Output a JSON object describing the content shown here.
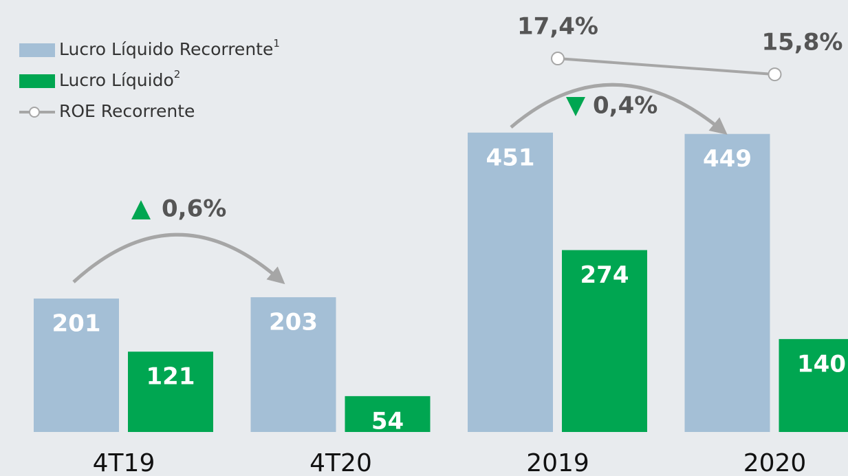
{
  "chart_data": {
    "type": "bar",
    "categories": [
      "4T19",
      "4T20",
      "2019",
      "2020"
    ],
    "series": [
      {
        "name": "Lucro Líquido Recorrente",
        "name_note": "1",
        "color": "#a4bfd6",
        "values": [
          201,
          203,
          451,
          449
        ]
      },
      {
        "name": "Lucro Líquido",
        "name_note": "2",
        "color": "#00a651",
        "values": [
          121,
          54,
          274,
          140
        ]
      },
      {
        "name": "ROE Recorrente",
        "color": "#a6a6a6",
        "type": "line",
        "axis": "y2",
        "values": [
          null,
          null,
          17.4,
          15.8
        ],
        "value_labels": [
          null,
          null,
          "17,4%",
          "15,8%"
        ]
      }
    ],
    "annotations": [
      {
        "text": "0,6%",
        "direction": "up",
        "color": "#00a651"
      },
      {
        "text": "0,4%",
        "direction": "down",
        "color": "#00a651"
      }
    ]
  }
}
